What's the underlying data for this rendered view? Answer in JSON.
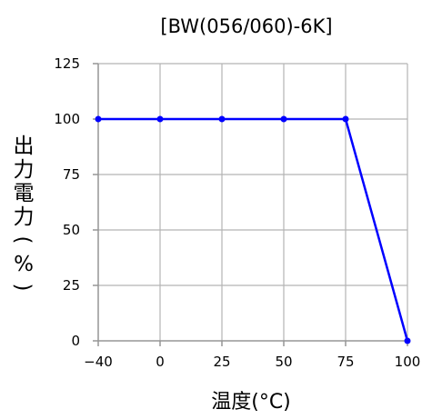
{
  "chart_data": {
    "type": "line",
    "title": "[BW(056/060)-6K]",
    "xlabel": "温度(°C)",
    "ylabel": "出力電力(%)",
    "x_ticks": [
      "-40",
      "0",
      "25",
      "50",
      "75",
      "100"
    ],
    "y_ticks": [
      "125",
      "100",
      "75",
      "50",
      "25",
      "0"
    ],
    "ylim": [
      0,
      125
    ],
    "grid": true,
    "series": [
      {
        "values": [
          100,
          100,
          100,
          100,
          100,
          0
        ]
      }
    ],
    "colors": {
      "line": "#0000FF",
      "marker": "#0000FF",
      "grid": "#B4B4B4",
      "axis": "#969696"
    }
  }
}
